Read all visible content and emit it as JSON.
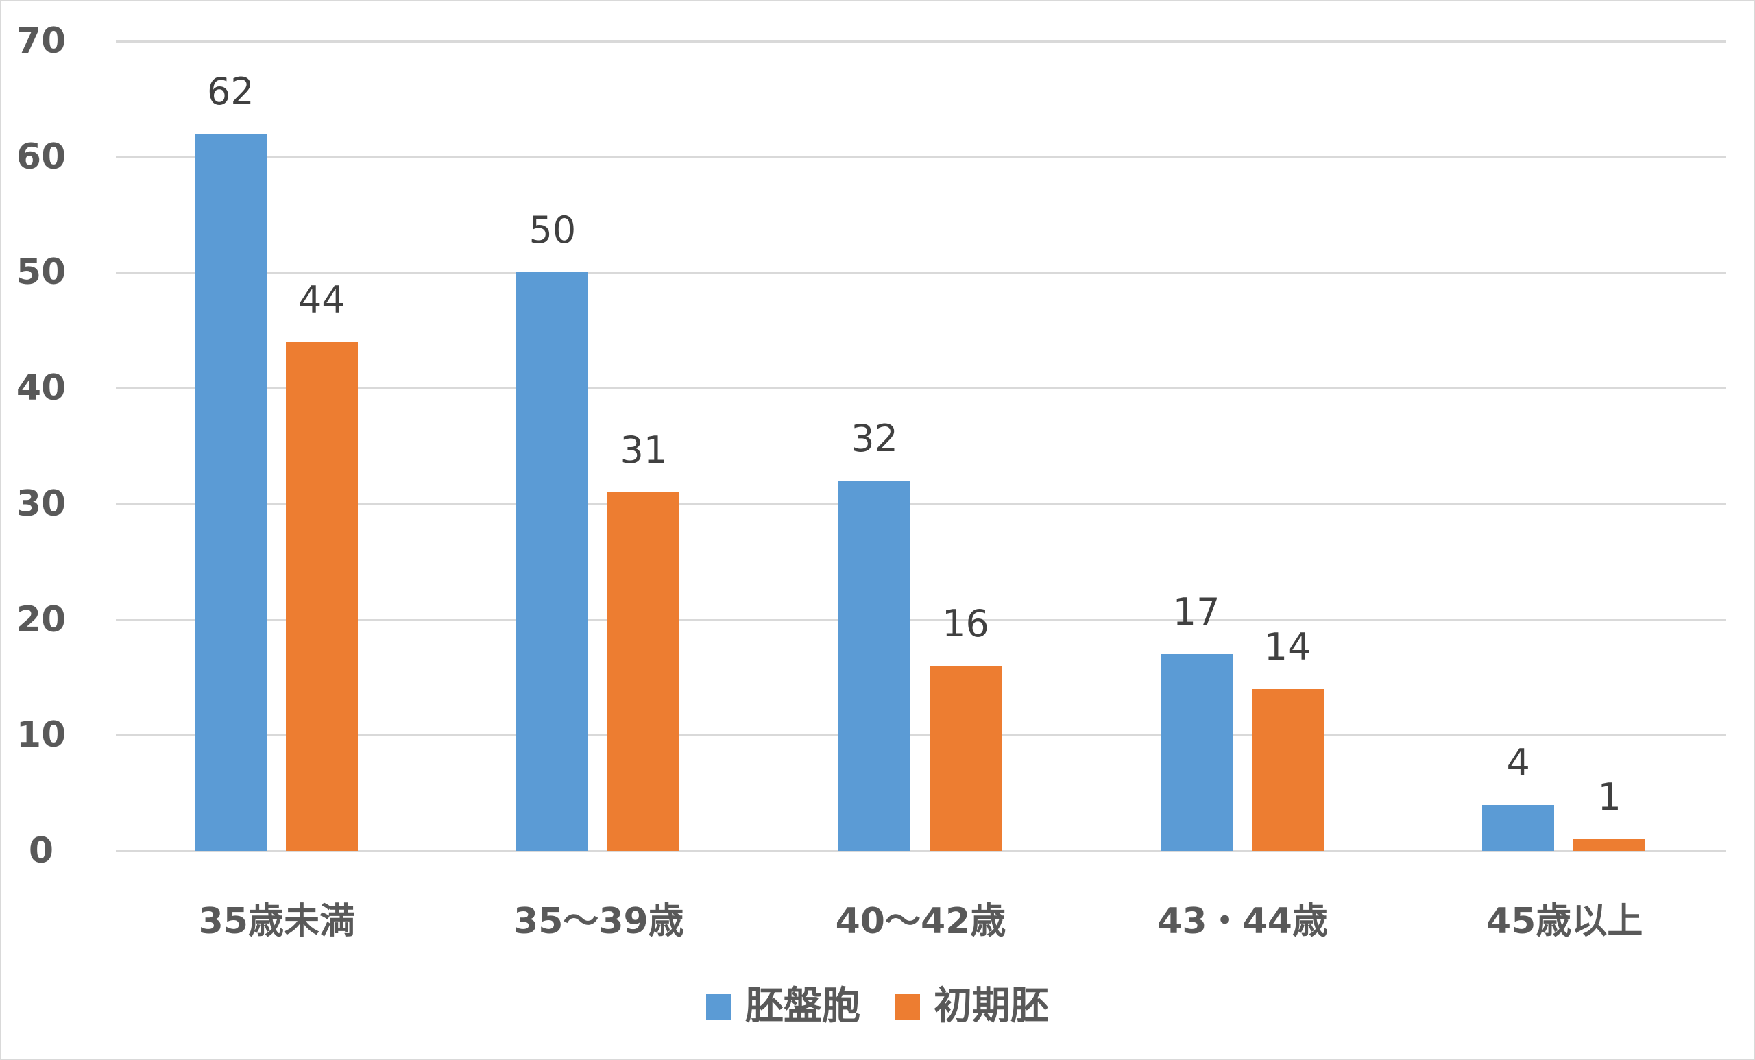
{
  "chart_data": {
    "type": "bar",
    "title": "",
    "xlabel": "",
    "ylabel": "",
    "categories": [
      "35歳未満",
      "35〜39歳",
      "40〜42歳",
      "43・44歳",
      "45歳以上"
    ],
    "series": [
      {
        "name": "胚盤胞",
        "color": "#5B9BD5",
        "values": [
          62,
          50,
          32,
          17,
          4
        ]
      },
      {
        "name": "初期胚",
        "color": "#ED7D31",
        "values": [
          44,
          31,
          16,
          14,
          1
        ]
      }
    ],
    "ylim": [
      0,
      70
    ],
    "yticks": [
      0,
      10,
      20,
      30,
      40,
      50,
      60,
      70
    ],
    "grid": true,
    "legend_position": "bottom",
    "data_labels": true
  },
  "legend": {
    "items": [
      {
        "label": "胚盤胞",
        "color": "#5B9BD5"
      },
      {
        "label": "初期胚",
        "color": "#ED7D31"
      }
    ]
  },
  "colors": {
    "gridline": "#D9D9D9",
    "axis_text": "#595959",
    "data_label_text": "#404040",
    "border": "#D9D9D9"
  }
}
